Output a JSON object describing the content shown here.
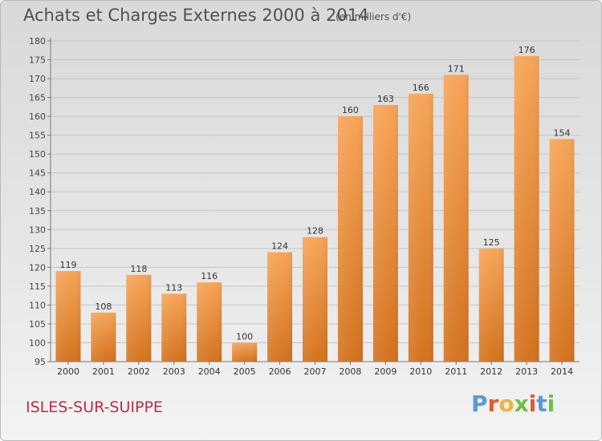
{
  "header": {
    "title": "Achats et Charges Externes 2000 à 2014",
    "unit": "(en milliers d'€)"
  },
  "footer": {
    "city": "ISLES-SUR-SUIPPE",
    "logo_letters": [
      "P",
      "r",
      "o",
      "x",
      "i",
      "t",
      "i"
    ]
  },
  "colors": {
    "bar_top": "#f7a558",
    "bar_bottom": "#d3731f",
    "logo": [
      "#5a9ad5",
      "#e25a2c",
      "#f0b23a",
      "#6dbf4a",
      "#e25a2c",
      "#5a9ad5",
      "#6dbf4a"
    ]
  },
  "chart_data": {
    "type": "bar",
    "title": "Achats et Charges Externes 2000 à 2014",
    "subtitle": "(en milliers d'€)",
    "categories": [
      "2000",
      "2001",
      "2002",
      "2003",
      "2004",
      "2005",
      "2006",
      "2007",
      "2008",
      "2009",
      "2010",
      "2011",
      "2012",
      "2013",
      "2014"
    ],
    "values": [
      119,
      108,
      118,
      113,
      116,
      100,
      124,
      128,
      160,
      163,
      166,
      171,
      125,
      176,
      154
    ],
    "ylim": [
      95,
      180
    ],
    "yticks": [
      95,
      100,
      105,
      110,
      115,
      120,
      125,
      130,
      135,
      140,
      145,
      150,
      155,
      160,
      165,
      170,
      175,
      180
    ],
    "grid": true,
    "legend": "none"
  }
}
